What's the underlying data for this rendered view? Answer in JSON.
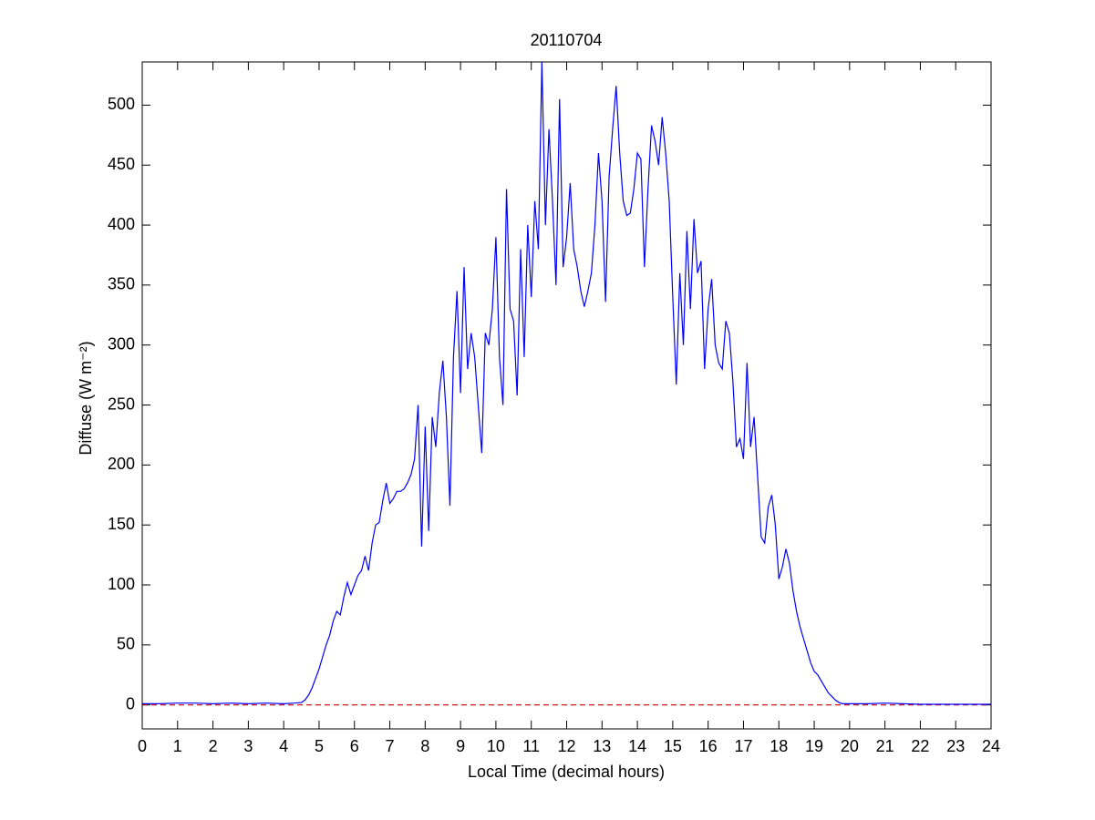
{
  "chart_data": {
    "type": "line",
    "title": "20110704",
    "x_label": "Local Time (decimal hours)",
    "y_label": "Diffuse (W m⁻²)",
    "x": [
      0,
      0.5,
      1,
      1.5,
      2,
      2.5,
      3,
      3.5,
      4,
      4.3,
      4.5,
      4.6,
      4.7,
      4.8,
      4.9,
      5.0,
      5.1,
      5.2,
      5.3,
      5.4,
      5.5,
      5.6,
      5.7,
      5.8,
      5.9,
      6.0,
      6.1,
      6.2,
      6.3,
      6.4,
      6.5,
      6.6,
      6.7,
      6.8,
      6.9,
      7.0,
      7.1,
      7.2,
      7.3,
      7.4,
      7.5,
      7.6,
      7.7,
      7.8,
      7.9,
      8.0,
      8.1,
      8.2,
      8.3,
      8.4,
      8.5,
      8.6,
      8.7,
      8.8,
      8.9,
      9.0,
      9.1,
      9.2,
      9.3,
      9.4,
      9.5,
      9.6,
      9.7,
      9.8,
      9.9,
      10.0,
      10.1,
      10.2,
      10.3,
      10.4,
      10.5,
      10.6,
      10.7,
      10.8,
      10.9,
      11.0,
      11.1,
      11.2,
      11.3,
      11.4,
      11.5,
      11.6,
      11.7,
      11.8,
      11.9,
      12.0,
      12.1,
      12.2,
      12.3,
      12.4,
      12.5,
      12.6,
      12.7,
      12.8,
      12.9,
      13.0,
      13.1,
      13.2,
      13.3,
      13.4,
      13.5,
      13.6,
      13.7,
      13.8,
      13.9,
      14.0,
      14.1,
      14.2,
      14.3,
      14.4,
      14.5,
      14.6,
      14.7,
      14.8,
      14.9,
      15.0,
      15.1,
      15.2,
      15.3,
      15.4,
      15.5,
      15.6,
      15.7,
      15.8,
      15.9,
      16.0,
      16.1,
      16.2,
      16.3,
      16.4,
      16.5,
      16.6,
      16.7,
      16.8,
      16.9,
      17.0,
      17.1,
      17.2,
      17.3,
      17.4,
      17.5,
      17.6,
      17.7,
      17.8,
      17.9,
      18.0,
      18.1,
      18.2,
      18.3,
      18.4,
      18.5,
      18.6,
      18.7,
      18.8,
      18.9,
      19.0,
      19.1,
      19.2,
      19.3,
      19.4,
      19.5,
      19.6,
      19.7,
      19.8,
      19.9,
      20.0,
      20.5,
      21,
      21.5,
      22,
      23,
      24
    ],
    "values": [
      1,
      1,
      1.5,
      1.5,
      1,
      1.5,
      1,
      1.5,
      1,
      1.5,
      2,
      4,
      8,
      14,
      22,
      30,
      40,
      50,
      58,
      70,
      78,
      75,
      90,
      102,
      92,
      100,
      108,
      112,
      124,
      112,
      135,
      150,
      152,
      170,
      185,
      168,
      172,
      178,
      178,
      180,
      185,
      192,
      205,
      250,
      132,
      232,
      145,
      240,
      215,
      260,
      287,
      240,
      166,
      290,
      345,
      260,
      365,
      280,
      310,
      290,
      250,
      210,
      310,
      300,
      330,
      390,
      290,
      250,
      430,
      330,
      320,
      258,
      380,
      290,
      400,
      340,
      420,
      380,
      536,
      400,
      480,
      420,
      350,
      505,
      365,
      390,
      435,
      380,
      365,
      345,
      332,
      345,
      360,
      400,
      460,
      420,
      336,
      440,
      480,
      516,
      460,
      420,
      408,
      410,
      430,
      460,
      455,
      365,
      430,
      483,
      470,
      450,
      490,
      460,
      420,
      340,
      267,
      360,
      300,
      395,
      330,
      405,
      360,
      370,
      280,
      330,
      355,
      300,
      285,
      280,
      320,
      310,
      270,
      215,
      222,
      205,
      285,
      215,
      240,
      190,
      140,
      135,
      165,
      175,
      150,
      105,
      115,
      130,
      118,
      95,
      78,
      65,
      55,
      45,
      35,
      28,
      25,
      20,
      15,
      10,
      7,
      4,
      2,
      1,
      1,
      1,
      1,
      1.5,
      1,
      0.5,
      0.5,
      0.5
    ],
    "color": "#0000ff",
    "hline": {
      "value": 0,
      "color": "#cc0000"
    },
    "xlim": [
      0,
      24
    ],
    "ylim": [
      -20,
      536
    ],
    "xticks": [
      0,
      1,
      2,
      3,
      4,
      5,
      6,
      7,
      8,
      9,
      10,
      11,
      12,
      13,
      14,
      15,
      16,
      17,
      18,
      19,
      20,
      21,
      22,
      23,
      24
    ],
    "yticks": [
      0,
      50,
      100,
      150,
      200,
      250,
      300,
      350,
      400,
      450,
      500
    ],
    "grid": false
  }
}
